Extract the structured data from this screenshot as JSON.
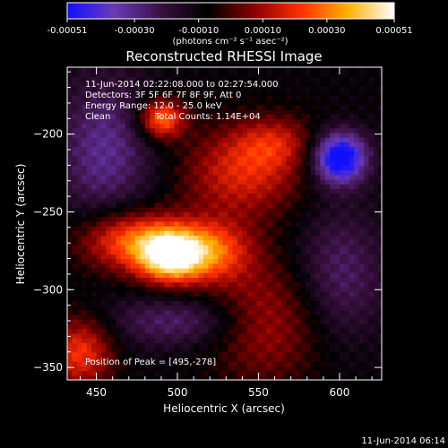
{
  "colorbar": {
    "ticks": [
      "-0.00051",
      "-0.00030",
      "-0.00010",
      "0.00010",
      "0.00030",
      "0.00051"
    ],
    "tick_values": [
      -0.00051,
      -0.0003,
      -0.0001,
      0.0001,
      0.0003,
      0.00051
    ],
    "range": [
      -0.00051,
      0.00051
    ],
    "units_label": "(photons cm⁻² s⁻¹ asec⁻²)",
    "colors": [
      "#1010ff",
      "#6a3ab8",
      "#3a1040",
      "#000000",
      "#8a0000",
      "#ff3000",
      "#ffb000",
      "#ffffff"
    ]
  },
  "chart_data": {
    "type": "heatmap",
    "title": "Reconstructed RHESSI Image",
    "xlabel": "Heliocentric X (arcsec)",
    "ylabel": "Heliocentric Y (arcsec)",
    "xlim": [
      432,
      626
    ],
    "ylim": [
      -358,
      -157
    ],
    "xticks": [
      450,
      500,
      550,
      600
    ],
    "yticks": [
      -200,
      -250,
      -300,
      -350
    ],
    "annotations": {
      "time_range": "11-Jun-2014 02:22:08.000 to 02:27:54.000",
      "detectors": "Detectors: 3F 5F 6F 7F 8F 9F, Att 0",
      "energy": "Energy Range: 12.0 - 25.0 keV",
      "method": "Clean",
      "counts": "Total Counts: 1.14E+04",
      "peak": "Position of Peak = [495,-278]"
    },
    "peak": [
      495,
      -278
    ],
    "sources": [
      {
        "x": 495,
        "y": -278,
        "sx": 14,
        "sy": 12,
        "amp": 0.00051
      },
      {
        "x": 470,
        "y": -268,
        "sx": 22,
        "sy": 14,
        "amp": 0.00036
      },
      {
        "x": 520,
        "y": -275,
        "sx": 18,
        "sy": 14,
        "amp": 0.00034
      },
      {
        "x": 490,
        "y": -190,
        "sx": 10,
        "sy": 9,
        "amp": 0.0004
      },
      {
        "x": 540,
        "y": -225,
        "sx": 26,
        "sy": 20,
        "amp": 0.00026
      },
      {
        "x": 560,
        "y": -205,
        "sx": 18,
        "sy": 12,
        "amp": 0.00018
      },
      {
        "x": 440,
        "y": -340,
        "sx": 14,
        "sy": 16,
        "amp": 0.0003
      },
      {
        "x": 555,
        "y": -320,
        "sx": 25,
        "sy": 28,
        "amp": 0.0002
      },
      {
        "x": 600,
        "y": -215,
        "sx": 12,
        "sy": 12,
        "amp": -0.0005
      },
      {
        "x": 455,
        "y": -210,
        "sx": 22,
        "sy": 35,
        "amp": -0.00022
      },
      {
        "x": 600,
        "y": -290,
        "sx": 20,
        "sy": 30,
        "amp": -0.00018
      },
      {
        "x": 500,
        "y": -320,
        "sx": 30,
        "sy": 12,
        "amp": -0.00018
      }
    ],
    "grid": false
  },
  "footer": {
    "timestamp": "11-Jun-2014 06:14"
  }
}
